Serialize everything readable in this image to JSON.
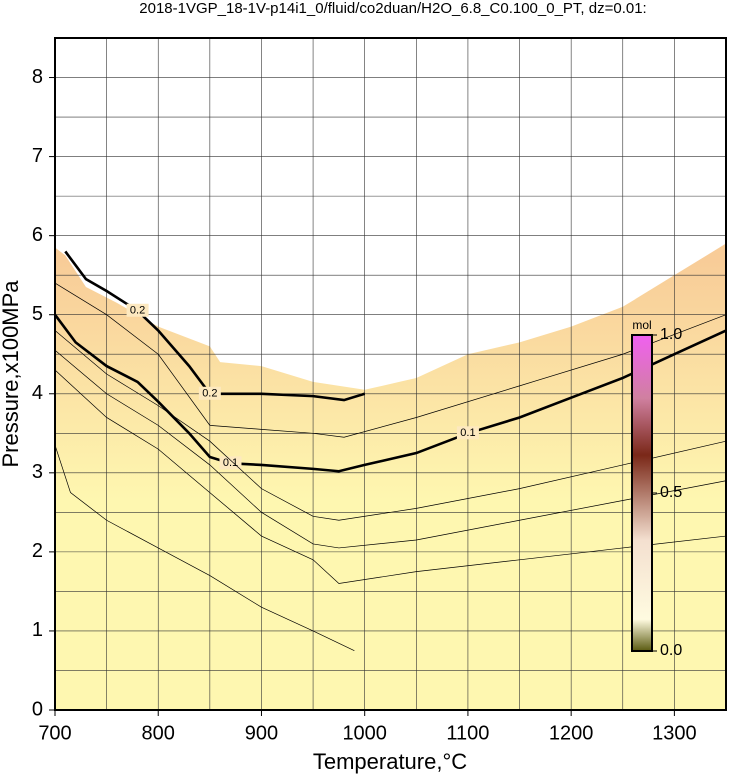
{
  "chart_data": {
    "type": "contour",
    "title": "2018-1VGP_18-1V-p14i1_0/fluid/co2duan/H2O_6.8_C0.100_0_PT, dz=0.01:",
    "x_label": "Temperature,°C",
    "y_label": "Pressure,x100MPa",
    "xlim": [
      700,
      1350
    ],
    "ylim": [
      0,
      8.5
    ],
    "xticks": [
      700,
      800,
      900,
      1000,
      1100,
      1200,
      1300
    ],
    "yticks": [
      0,
      1,
      2,
      3,
      4,
      5,
      6,
      7,
      8
    ],
    "xgrid": [
      750,
      800,
      850,
      900,
      950,
      1000,
      1050,
      1100,
      1150,
      1200,
      1250,
      1300
    ],
    "ygrid": [
      0.5,
      1,
      1.5,
      2,
      2.5,
      3,
      3.5,
      4,
      4.5,
      5,
      5.5,
      6,
      6.5,
      7,
      7.5,
      8
    ],
    "grid": true,
    "region_top": {
      "x": [
        700,
        710,
        720,
        730,
        760,
        800,
        850,
        860,
        900,
        950,
        1000,
        1050,
        1100,
        1150,
        1200,
        1250,
        1300,
        1350
      ],
      "y": [
        5.85,
        5.75,
        5.55,
        5.35,
        5.15,
        4.85,
        4.6,
        4.4,
        4.35,
        4.15,
        4.05,
        4.2,
        4.5,
        4.65,
        4.85,
        5.1,
        5.5,
        5.9
      ]
    },
    "series": [
      {
        "level": 0.1,
        "x": [
          700,
          720,
          750,
          780,
          800,
          830,
          850,
          870,
          900,
          950,
          975,
          1000,
          1050,
          1100,
          1150,
          1200,
          1250,
          1300,
          1350
        ],
        "values": [
          5.0,
          4.65,
          4.35,
          4.15,
          3.9,
          3.5,
          3.2,
          3.12,
          3.1,
          3.05,
          3.02,
          3.1,
          3.25,
          3.5,
          3.7,
          3.95,
          4.2,
          4.5,
          4.8
        ]
      },
      {
        "level": 0.2,
        "x": [
          710,
          730,
          750,
          780,
          800,
          830,
          850,
          900,
          950,
          980,
          1000
        ],
        "values": [
          5.8,
          5.45,
          5.3,
          5.05,
          4.8,
          4.35,
          4.0,
          4.0,
          3.97,
          3.92,
          4.0
        ]
      },
      {
        "x": [
          700,
          715,
          750,
          800,
          850,
          900,
          950,
          990
        ],
        "values": [
          3.35,
          2.75,
          2.4,
          2.05,
          1.7,
          1.3,
          1.0,
          0.75
        ]
      },
      {
        "x": [
          700,
          750,
          800,
          850,
          900,
          950,
          975,
          1050,
          1150,
          1250,
          1350
        ],
        "values": [
          4.3,
          3.7,
          3.3,
          2.75,
          2.2,
          1.9,
          1.6,
          1.75,
          1.9,
          2.05,
          2.2
        ]
      },
      {
        "x": [
          700,
          750,
          800,
          850,
          900,
          950,
          975,
          1050,
          1150,
          1250,
          1350
        ],
        "values": [
          4.55,
          4.0,
          3.6,
          3.1,
          2.5,
          2.1,
          2.05,
          2.15,
          2.4,
          2.65,
          2.9
        ]
      },
      {
        "x": [
          700,
          750,
          800,
          850,
          900,
          950,
          975,
          1050,
          1150,
          1250,
          1350
        ],
        "values": [
          4.8,
          4.25,
          3.85,
          3.4,
          2.8,
          2.45,
          2.4,
          2.55,
          2.8,
          3.1,
          3.4
        ]
      },
      {
        "x": [
          700,
          750,
          800,
          850,
          900,
          950,
          980,
          1050,
          1150,
          1250,
          1350
        ],
        "values": [
          5.4,
          5.0,
          4.5,
          3.6,
          3.55,
          3.5,
          3.45,
          3.7,
          4.1,
          4.5,
          5.0
        ]
      }
    ],
    "colorbar": {
      "label": "mol",
      "lim": [
        0,
        1
      ],
      "ticks": [
        {
          "value": 0,
          "label": "0.0"
        },
        {
          "value": 0.5,
          "label": "0.5"
        },
        {
          "value": 1,
          "label": "1.0"
        }
      ]
    }
  }
}
